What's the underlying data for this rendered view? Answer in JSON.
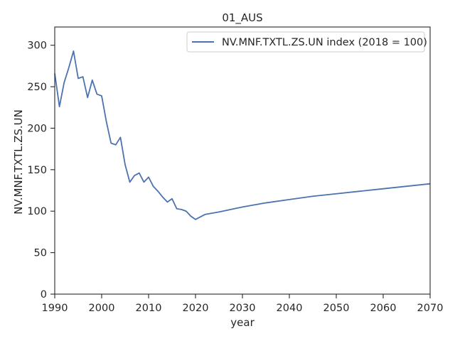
{
  "chart_data": {
    "type": "line",
    "title": "01_AUS",
    "xlabel": "year",
    "ylabel": "NV.MNF.TXTL.ZS.UN",
    "xlim": [
      1990,
      2070
    ],
    "ylim": [
      0,
      322
    ],
    "xticks": [
      1990,
      2000,
      2010,
      2020,
      2030,
      2040,
      2050,
      2060,
      2070
    ],
    "yticks": [
      0,
      50,
      100,
      150,
      200,
      250,
      300
    ],
    "grid": false,
    "legend_position": "top-right",
    "series": [
      {
        "name": "NV.MNF.TXTL.ZS.UN index (2018 = 100)",
        "color": "#4c72b0",
        "x": [
          1990,
          1991,
          1992,
          1993,
          1994,
          1995,
          1996,
          1997,
          1998,
          1999,
          2000,
          2001,
          2002,
          2003,
          2004,
          2005,
          2006,
          2007,
          2008,
          2009,
          2010,
          2011,
          2012,
          2013,
          2014,
          2015,
          2016,
          2017,
          2018,
          2019,
          2020,
          2021,
          2022,
          2025,
          2030,
          2035,
          2040,
          2045,
          2050,
          2055,
          2060,
          2065,
          2070
        ],
        "y": [
          266,
          226,
          255,
          273,
          293,
          260,
          262,
          237,
          258,
          241,
          239,
          208,
          182,
          180,
          189,
          156,
          135,
          143,
          146,
          135,
          141,
          130,
          124,
          117,
          111,
          115,
          103,
          102,
          100,
          94,
          90,
          93,
          96,
          99,
          105,
          110,
          114,
          118,
          121,
          124,
          127,
          130,
          133
        ]
      }
    ]
  }
}
